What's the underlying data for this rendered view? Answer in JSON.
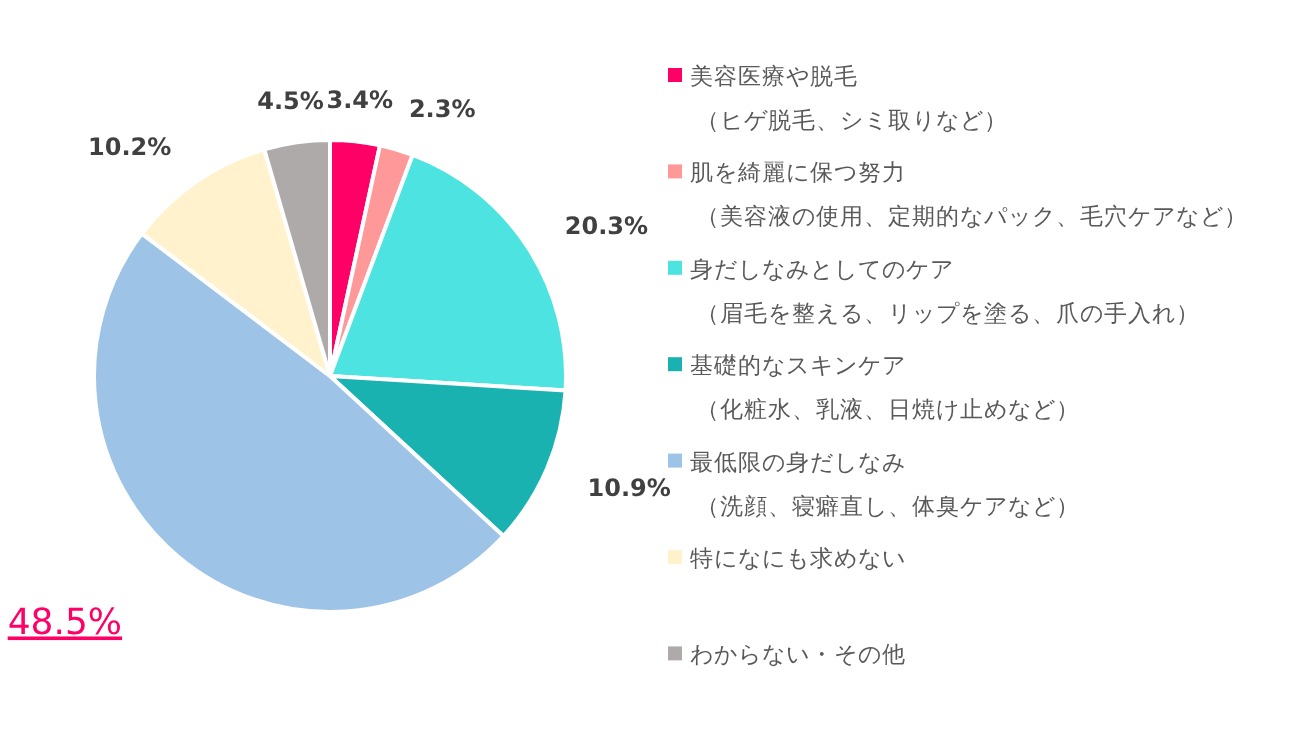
{
  "chart_data": {
    "type": "pie",
    "categories": [
      "美容医療や脱毛（ヒゲ脱毛、シミ取りなど）",
      "肌を綺麗に保つ努力（美容液の使用、定期的なパック、毛穴ケアなど）",
      "身だしなみとしてのケア（眉毛を整える、リップを塗る、爪の手入れ）",
      "基礎的なスキンケア（化粧水、乳液、日焼け止めなど）",
      "最低限の身だしなみ（洗顔、寝癖直し、体臭ケアなど）",
      "特になにも求めない",
      "わからない・その他"
    ],
    "values": [
      3.4,
      2.3,
      20.3,
      10.9,
      48.5,
      10.2,
      4.5
    ],
    "value_labels": [
      "3.4%",
      "2.3%",
      "20.3%",
      "10.9%",
      "48.5%",
      "10.2%",
      "4.5%"
    ],
    "colors": [
      "#ff0066",
      "#ff9999",
      "#4de3e0",
      "#1ab2b0",
      "#9dc3e6",
      "#fff2cc",
      "#aeaaaa"
    ],
    "legend": "right"
  }
}
